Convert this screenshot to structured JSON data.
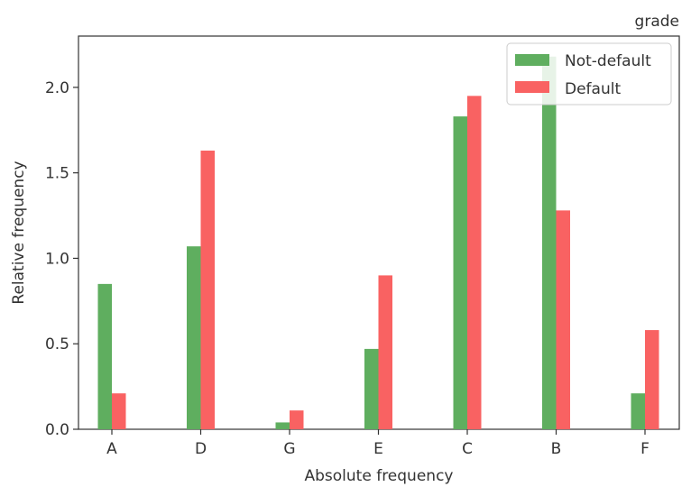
{
  "chart_data": {
    "type": "bar",
    "title": "grade",
    "xlabel": "Absolute frequency",
    "ylabel": "Relative frequency",
    "categories": [
      "A",
      "D",
      "G",
      "E",
      "C",
      "B",
      "F"
    ],
    "ylim": [
      0,
      2.3
    ],
    "yticks": [
      0.0,
      0.5,
      1.0,
      1.5,
      2.0
    ],
    "ytick_labels": [
      "0.0",
      "0.5",
      "1.0",
      "1.5",
      "2.0"
    ],
    "grid": false,
    "legend_position": "top-right",
    "series": [
      {
        "name": "Not-default",
        "color": "#5fae5f",
        "values": [
          0.85,
          1.07,
          0.04,
          0.47,
          1.83,
          2.18,
          0.21
        ]
      },
      {
        "name": "Default",
        "color": "#f96262",
        "values": [
          0.21,
          1.63,
          0.11,
          0.9,
          1.95,
          1.28,
          0.58
        ]
      }
    ]
  }
}
